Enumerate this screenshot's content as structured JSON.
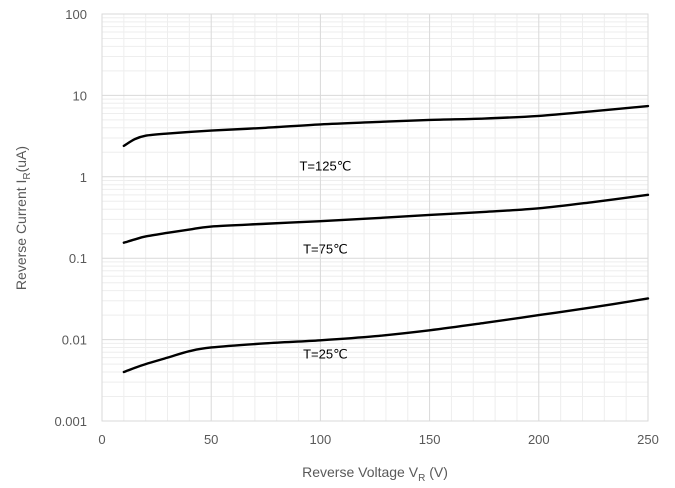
{
  "chart_data": {
    "type": "line",
    "title": "",
    "xlabel": "Reverse Voltage V",
    "xlabel_sub": "R",
    "xlabel_unit": " (V)",
    "ylabel": "Reverse Current I",
    "ylabel_sub": "R",
    "ylabel_unit": "(uA)",
    "xlim": [
      0,
      250
    ],
    "ylim": [
      0.001,
      100
    ],
    "yscale": "log",
    "x_ticks": [
      "0",
      "50",
      "100",
      "150",
      "200",
      "250"
    ],
    "x_tick_values": [
      0,
      50,
      100,
      150,
      200,
      250
    ],
    "y_ticks": [
      "0.001",
      "0.01",
      "0.1",
      "1",
      "10",
      "100"
    ],
    "y_tick_values": [
      0.001,
      0.01,
      0.1,
      1,
      10,
      100
    ],
    "grid": true,
    "line_color": "#000000",
    "series": [
      {
        "label": "T=125℃",
        "label_at": [
          100,
          1.2
        ],
        "points": [
          [
            10,
            2.4
          ],
          [
            15,
            2.9
          ],
          [
            20,
            3.2
          ],
          [
            30,
            3.4
          ],
          [
            50,
            3.7
          ],
          [
            75,
            4.0
          ],
          [
            100,
            4.4
          ],
          [
            125,
            4.7
          ],
          [
            150,
            5.0
          ],
          [
            175,
            5.2
          ],
          [
            200,
            5.6
          ],
          [
            225,
            6.4
          ],
          [
            250,
            7.4
          ]
        ]
      },
      {
        "label": "T=75℃",
        "label_at": [
          100,
          0.115
        ],
        "points": [
          [
            10,
            0.155
          ],
          [
            15,
            0.17
          ],
          [
            20,
            0.185
          ],
          [
            30,
            0.205
          ],
          [
            40,
            0.225
          ],
          [
            50,
            0.245
          ],
          [
            75,
            0.265
          ],
          [
            100,
            0.285
          ],
          [
            125,
            0.31
          ],
          [
            150,
            0.34
          ],
          [
            175,
            0.37
          ],
          [
            200,
            0.41
          ],
          [
            225,
            0.49
          ],
          [
            250,
            0.6
          ]
        ]
      },
      {
        "label": "T=25℃",
        "label_at": [
          100,
          0.0059
        ],
        "points": [
          [
            10,
            0.004
          ],
          [
            15,
            0.0045
          ],
          [
            20,
            0.005
          ],
          [
            30,
            0.006
          ],
          [
            40,
            0.0072
          ],
          [
            50,
            0.008
          ],
          [
            75,
            0.009
          ],
          [
            100,
            0.0098
          ],
          [
            125,
            0.011
          ],
          [
            150,
            0.013
          ],
          [
            175,
            0.016
          ],
          [
            200,
            0.02
          ],
          [
            225,
            0.025
          ],
          [
            250,
            0.032
          ]
        ]
      }
    ]
  }
}
